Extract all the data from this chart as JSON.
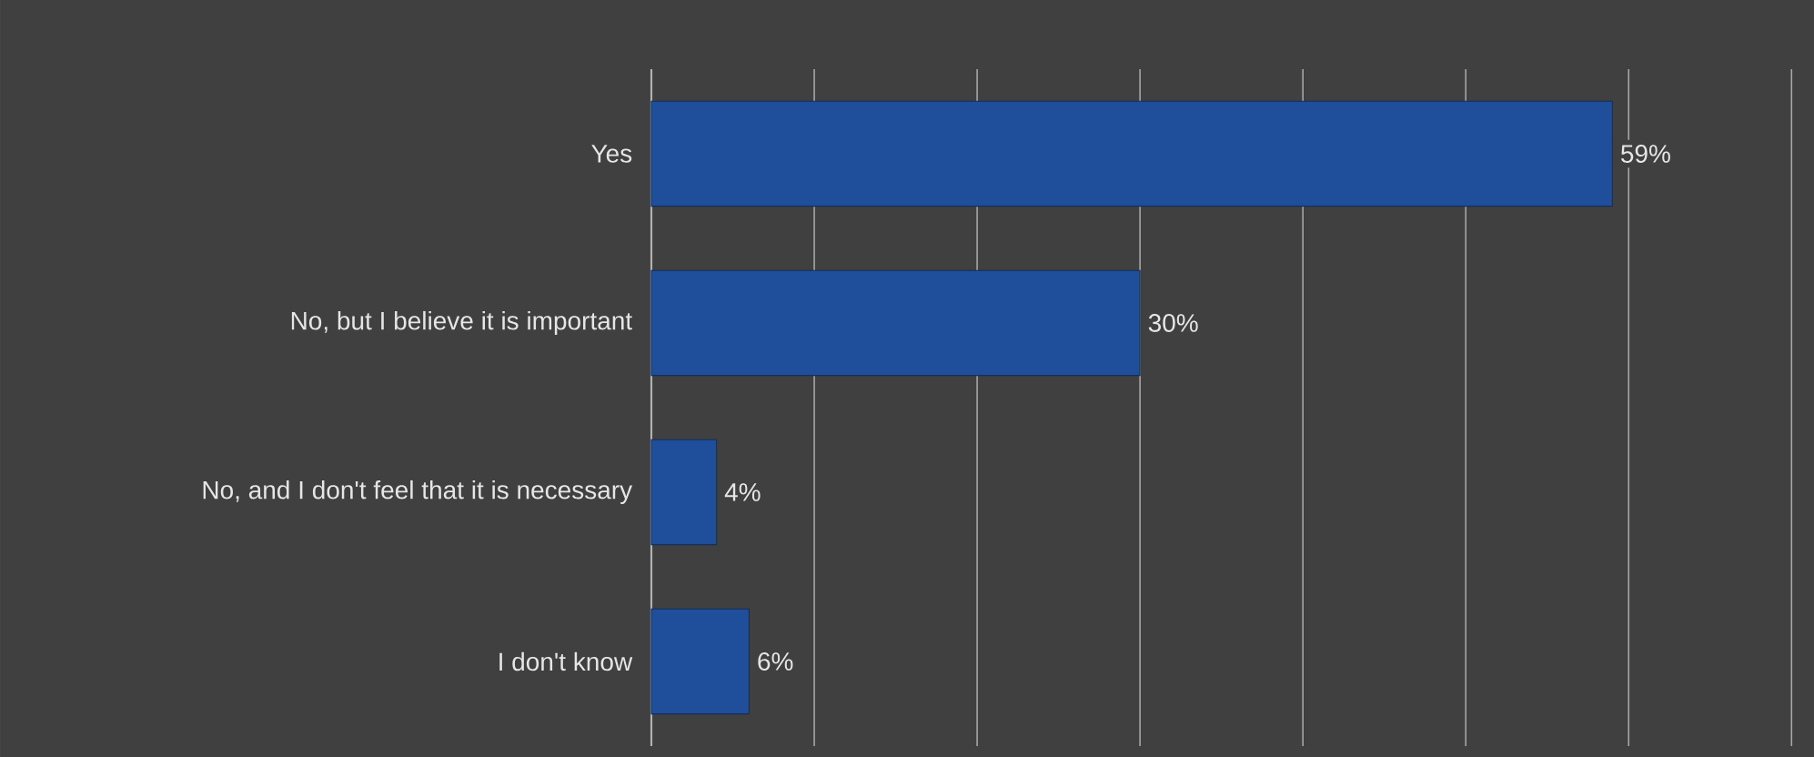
{
  "chart_data": {
    "type": "bar",
    "orientation": "horizontal",
    "categories": [
      "Yes",
      "No, but I believe it is important",
      "No, and I don't feel that it is necessary",
      "I don't know"
    ],
    "values": [
      59,
      30,
      4,
      6
    ],
    "value_labels": [
      "59%",
      "30%",
      "4%",
      "6%"
    ],
    "color": "#1f4e9a",
    "xlim": [
      0,
      70
    ],
    "xticks": [
      {
        "value": 0,
        "label": null
      },
      {
        "value": 10,
        "label": null
      },
      {
        "value": 20,
        "label": null
      },
      {
        "value": 30,
        "label": null
      },
      {
        "value": 40,
        "label": null
      },
      {
        "value": 50,
        "label": null
      },
      {
        "value": 60,
        "label": null
      },
      {
        "value": 70,
        "label": null
      }
    ],
    "grid": "x",
    "tick_labels": "y"
  }
}
